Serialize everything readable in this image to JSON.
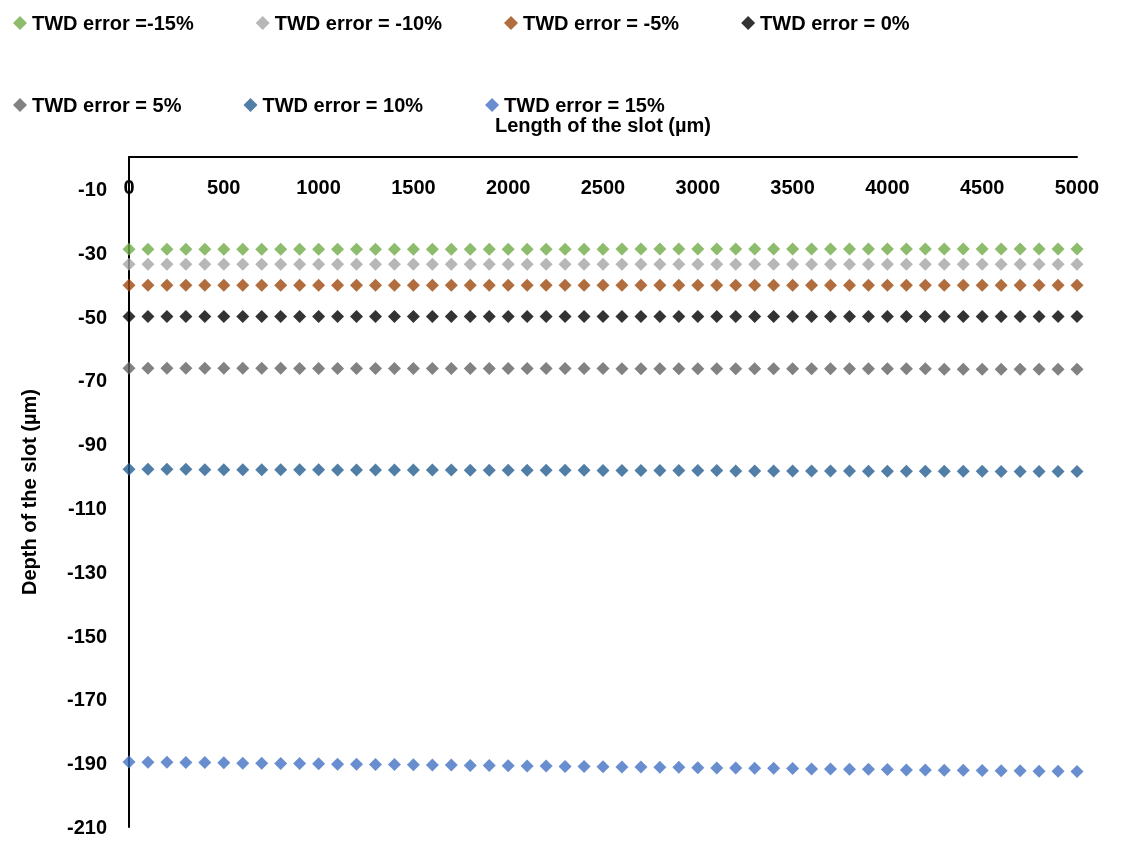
{
  "chart_data": {
    "type": "scatter",
    "xlabel": "Length of the slot (µm)",
    "ylabel": "Depth of the slot (µm)",
    "x": [
      0,
      100,
      200,
      300,
      400,
      500,
      600,
      700,
      800,
      900,
      1000,
      1100,
      1200,
      1300,
      1400,
      1500,
      1600,
      1700,
      1800,
      1900,
      2000,
      2100,
      2200,
      2300,
      2400,
      2500,
      2600,
      2700,
      2800,
      2900,
      3000,
      3100,
      3200,
      3300,
      3400,
      3500,
      3600,
      3700,
      3800,
      3900,
      4000,
      4100,
      4200,
      4300,
      4400,
      4500,
      4600,
      4700,
      4800,
      4900,
      5000
    ],
    "xlim": [
      0,
      5000
    ],
    "xticks": [
      0,
      500,
      1000,
      1500,
      2000,
      2500,
      3000,
      3500,
      4000,
      4500,
      5000
    ],
    "ylim": [
      -210,
      0
    ],
    "yticks": [
      -210,
      -190,
      -170,
      -150,
      -130,
      -110,
      -90,
      -70,
      -50,
      -30,
      -10
    ],
    "grid": false,
    "legend": "top",
    "marker": "diamond",
    "series": [
      {
        "name": "TWD error =-15%",
        "color": "#70ad47",
        "values": [
          -28.9,
          -28.9,
          -28.9,
          -28.9,
          -28.9,
          -28.9,
          -28.9,
          -28.9,
          -28.9,
          -28.9,
          -28.9,
          -28.9,
          -28.9,
          -28.9,
          -28.9,
          -28.9,
          -28.9,
          -28.9,
          -28.9,
          -28.9,
          -28.9,
          -28.9,
          -28.9,
          -28.9,
          -28.9,
          -28.9,
          -28.8,
          -28.8,
          -28.8,
          -28.8,
          -28.8,
          -28.8,
          -28.8,
          -28.8,
          -28.8,
          -28.8,
          -28.8,
          -28.8,
          -28.8,
          -28.8,
          -28.8,
          -28.8,
          -28.8,
          -28.8,
          -28.8,
          -28.8,
          -28.8,
          -28.8,
          -28.8,
          -28.8,
          -28.8
        ]
      },
      {
        "name": "TWD error = -10%",
        "color": "#a5a5a5",
        "values": [
          -33.6,
          -33.6,
          -33.6,
          -33.6,
          -33.6,
          -33.6,
          -33.6,
          -33.6,
          -33.6,
          -33.6,
          -33.6,
          -33.6,
          -33.6,
          -33.6,
          -33.6,
          -33.6,
          -33.6,
          -33.6,
          -33.6,
          -33.6,
          -33.6,
          -33.6,
          -33.6,
          -33.6,
          -33.6,
          -33.6,
          -33.6,
          -33.6,
          -33.6,
          -33.6,
          -33.6,
          -33.6,
          -33.6,
          -33.6,
          -33.6,
          -33.6,
          -33.6,
          -33.6,
          -33.6,
          -33.6,
          -33.6,
          -33.6,
          -33.6,
          -33.6,
          -33.6,
          -33.6,
          -33.6,
          -33.6,
          -33.6,
          -33.6,
          -33.6
        ]
      },
      {
        "name": "TWD error = -5%",
        "color": "#9e480e",
        "values": [
          -40.2,
          -40.2,
          -40.2,
          -40.2,
          -40.2,
          -40.2,
          -40.2,
          -40.2,
          -40.2,
          -40.2,
          -40.2,
          -40.2,
          -40.2,
          -40.2,
          -40.2,
          -40.2,
          -40.2,
          -40.2,
          -40.2,
          -40.2,
          -40.2,
          -40.2,
          -40.2,
          -40.2,
          -40.2,
          -40.2,
          -40.2,
          -40.2,
          -40.2,
          -40.2,
          -40.2,
          -40.2,
          -40.2,
          -40.2,
          -40.2,
          -40.2,
          -40.2,
          -40.2,
          -40.2,
          -40.2,
          -40.2,
          -40.2,
          -40.2,
          -40.2,
          -40.2,
          -40.2,
          -40.2,
          -40.2,
          -40.2,
          -40.2,
          -40.2
        ]
      },
      {
        "name": "TWD error = 0%",
        "color": "#000000",
        "values": [
          -50,
          -50,
          -50,
          -50,
          -50,
          -50,
          -50,
          -50,
          -50,
          -50,
          -50,
          -50,
          -50,
          -50,
          -50,
          -50,
          -50,
          -50,
          -50,
          -50,
          -50,
          -50,
          -50,
          -50,
          -50,
          -50,
          -50,
          -50,
          -50,
          -50,
          -50,
          -50,
          -50,
          -50,
          -50,
          -50,
          -50,
          -50,
          -50,
          -50,
          -50,
          -50,
          -50,
          -50,
          -50,
          -50,
          -50,
          -50,
          -50,
          -50,
          -50
        ]
      },
      {
        "name": "TWD error = 5%",
        "color": "#636363",
        "values": [
          -66.2,
          -66.2,
          -66.2,
          -66.2,
          -66.2,
          -66.2,
          -66.2,
          -66.2,
          -66.2,
          -66.3,
          -66.3,
          -66.3,
          -66.3,
          -66.3,
          -66.3,
          -66.3,
          -66.3,
          -66.3,
          -66.3,
          -66.3,
          -66.3,
          -66.3,
          -66.3,
          -66.3,
          -66.3,
          -66.3,
          -66.4,
          -66.4,
          -66.4,
          -66.4,
          -66.4,
          -66.4,
          -66.4,
          -66.4,
          -66.4,
          -66.4,
          -66.4,
          -66.4,
          -66.4,
          -66.4,
          -66.4,
          -66.4,
          -66.4,
          -66.5,
          -66.5,
          -66.5,
          -66.5,
          -66.5,
          -66.5,
          -66.5,
          -66.5
        ]
      },
      {
        "name": "TWD error = 10%",
        "color": "#255e91",
        "values": [
          -97.9,
          -97.9,
          -97.9,
          -97.9,
          -98.0,
          -98.0,
          -98.0,
          -98.0,
          -98.0,
          -98.0,
          -98.0,
          -98.1,
          -98.1,
          -98.1,
          -98.1,
          -98.1,
          -98.1,
          -98.1,
          -98.2,
          -98.2,
          -98.2,
          -98.2,
          -98.2,
          -98.2,
          -98.2,
          -98.3,
          -98.3,
          -98.3,
          -98.3,
          -98.3,
          -98.3,
          -98.3,
          -98.4,
          -98.4,
          -98.4,
          -98.4,
          -98.4,
          -98.4,
          -98.4,
          -98.5,
          -98.5,
          -98.5,
          -98.5,
          -98.5,
          -98.5,
          -98.5,
          -98.6,
          -98.6,
          -98.6,
          -98.6,
          -98.6
        ]
      },
      {
        "name": "TWD error = 15%",
        "color": "#4472c4",
        "values": [
          -189.6,
          -189.7,
          -189.7,
          -189.8,
          -189.8,
          -189.9,
          -190.0,
          -190.0,
          -190.1,
          -190.1,
          -190.2,
          -190.3,
          -190.3,
          -190.4,
          -190.4,
          -190.5,
          -190.6,
          -190.6,
          -190.7,
          -190.7,
          -190.8,
          -190.9,
          -190.9,
          -191.0,
          -191.0,
          -191.1,
          -191.2,
          -191.2,
          -191.3,
          -191.3,
          -191.4,
          -191.5,
          -191.5,
          -191.6,
          -191.6,
          -191.7,
          -191.8,
          -191.8,
          -191.9,
          -191.9,
          -192.0,
          -192.1,
          -192.1,
          -192.2,
          -192.2,
          -192.3,
          -192.4,
          -192.4,
          -192.5,
          -192.5,
          -192.6
        ]
      }
    ]
  }
}
